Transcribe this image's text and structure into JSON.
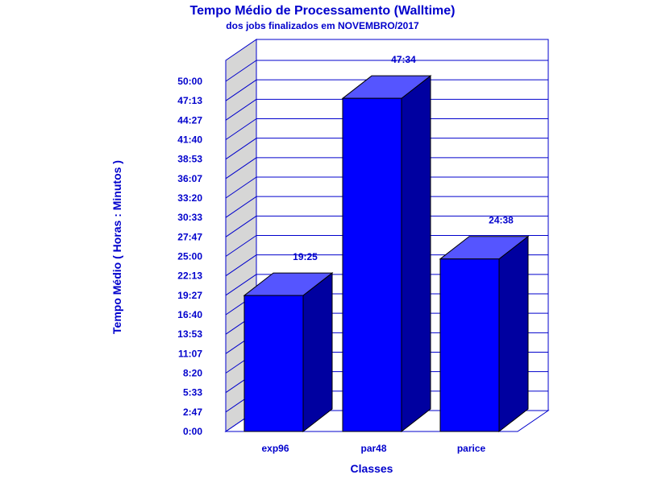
{
  "chart_data": {
    "type": "bar",
    "title": "Tempo Médio de Processamento (Walltime)",
    "subtitle": "dos jobs finalizados em NOVEMBRO/2017",
    "xlabel": "Classes",
    "ylabel": "Tempo Médio ( Horas : Minutos )",
    "categories": [
      "exp96",
      "par48",
      "parice"
    ],
    "values_minutes": [
      1165,
      2854,
      1478
    ],
    "value_labels": [
      "19:25",
      "47:34",
      "24:38"
    ],
    "y_ticks": [
      "0:00",
      "2:47",
      "5:33",
      "8:20",
      "11:07",
      "13:53",
      "16:40",
      "19:27",
      "22:13",
      "25:00",
      "27:47",
      "30:33",
      "33:20",
      "36:07",
      "38:53",
      "41:40",
      "44:27",
      "47:13",
      "50:00"
    ],
    "ylim_minutes": [
      0,
      3000
    ],
    "grid": true,
    "colors": {
      "text": "#0000cc",
      "bar_front": "#0000ff",
      "bar_top": "#5555ff",
      "bar_side": "#0000a0",
      "wall": "#d6d6d6",
      "grid": "#0000cc"
    }
  }
}
